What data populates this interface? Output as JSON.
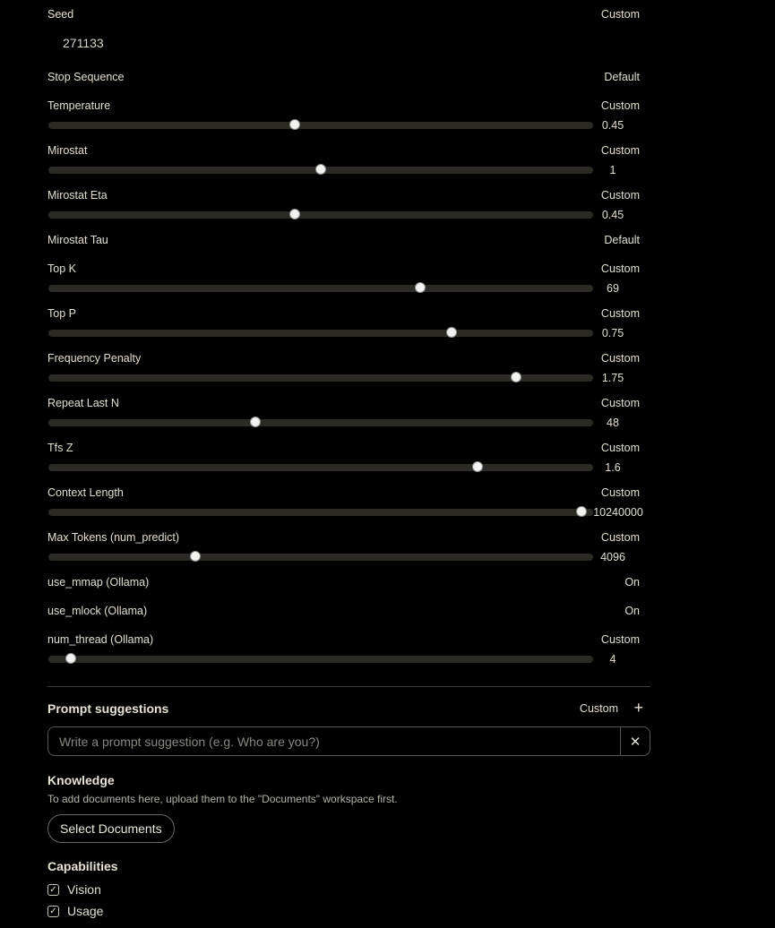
{
  "params": {
    "seed": {
      "label": "Seed",
      "mode": "Custom",
      "value": "271133"
    },
    "stop_sequence": {
      "label": "Stop Sequence",
      "mode": "Default"
    },
    "temperature": {
      "label": "Temperature",
      "mode": "Custom",
      "value": "0.45",
      "fraction": 0.45
    },
    "mirostat": {
      "label": "Mirostat",
      "mode": "Custom",
      "value": "1",
      "fraction": 0.5
    },
    "mirostat_eta": {
      "label": "Mirostat Eta",
      "mode": "Custom",
      "value": "0.45",
      "fraction": 0.45
    },
    "mirostat_tau": {
      "label": "Mirostat Tau",
      "mode": "Default"
    },
    "top_k": {
      "label": "Top K",
      "mode": "Custom",
      "value": "69",
      "fraction": 0.69
    },
    "top_p": {
      "label": "Top P",
      "mode": "Custom",
      "value": "0.75",
      "fraction": 0.75
    },
    "frequency_penalty": {
      "label": "Frequency Penalty",
      "mode": "Custom",
      "value": "1.75",
      "fraction": 0.875
    },
    "repeat_last_n": {
      "label": "Repeat Last N",
      "mode": "Custom",
      "value": "48",
      "fraction": 0.375
    },
    "tfs_z": {
      "label": "Tfs Z",
      "mode": "Custom",
      "value": "1.6",
      "fraction": 0.8
    },
    "context_length": {
      "label": "Context Length",
      "mode": "Custom",
      "value": "10240000",
      "fraction": 1.0
    },
    "max_tokens": {
      "label": "Max Tokens (num_predict)",
      "mode": "Custom",
      "value": "4096",
      "fraction": 0.26
    },
    "use_mmap": {
      "label": "use_mmap (Ollama)",
      "mode": "On"
    },
    "use_mlock": {
      "label": "use_mlock (Ollama)",
      "mode": "On"
    },
    "num_thread": {
      "label": "num_thread (Ollama)",
      "mode": "Custom",
      "value": "4",
      "fraction": 0.02
    }
  },
  "prompt_suggestions": {
    "title": "Prompt suggestions",
    "mode": "Custom",
    "add_icon": "plus-icon",
    "placeholder": "Write a prompt suggestion (e.g. Who are you?)",
    "clear_icon": "close-icon"
  },
  "knowledge": {
    "title": "Knowledge",
    "hint": "To add documents here, upload them to the \"Documents\" workspace first.",
    "button": "Select Documents"
  },
  "capabilities": {
    "title": "Capabilities",
    "items": [
      {
        "label": "Vision",
        "checked": true
      },
      {
        "label": "Usage",
        "checked": true
      }
    ]
  }
}
